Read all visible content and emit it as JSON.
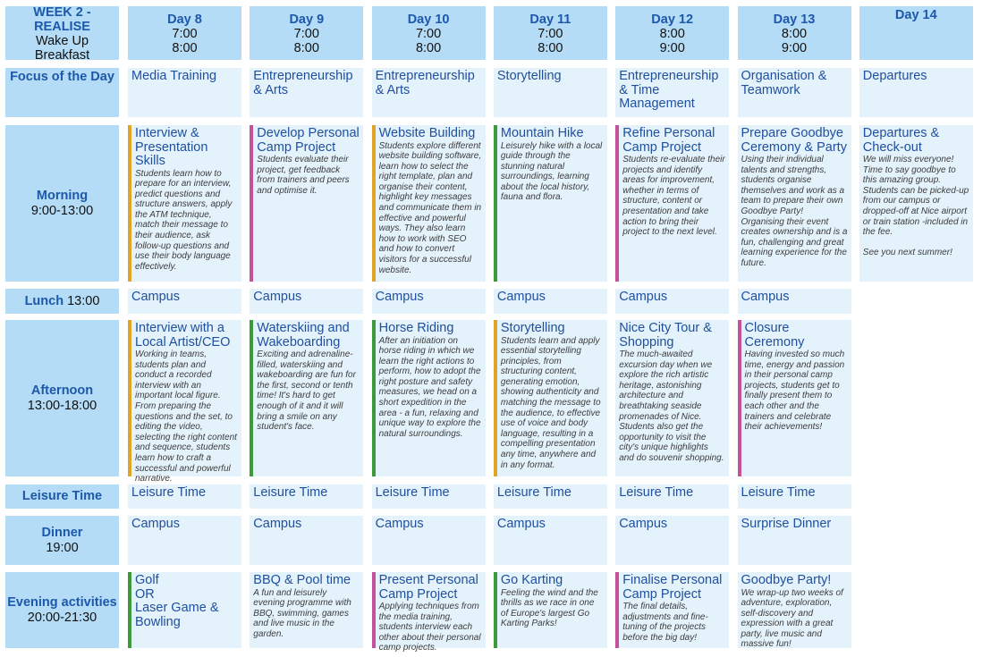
{
  "header": {
    "label": [
      "WEEK 2 - REALISE",
      "Wake Up",
      "Breakfast"
    ],
    "days": [
      {
        "day": "Day 8",
        "times": [
          "7:00",
          "8:00"
        ]
      },
      {
        "day": "Day 9",
        "times": [
          "7:00",
          "8:00"
        ]
      },
      {
        "day": "Day 10",
        "times": [
          "7:00",
          "8:00"
        ]
      },
      {
        "day": "Day 11",
        "times": [
          "7:00",
          "8:00"
        ]
      },
      {
        "day": "Day 12",
        "times": [
          "8:00",
          "9:00"
        ]
      },
      {
        "day": "Day 13",
        "times": [
          "8:00",
          "9:00"
        ]
      },
      {
        "day": "Day 14",
        "times": []
      }
    ]
  },
  "rows": [
    {
      "label": [
        "Focus of the Day"
      ],
      "cells": [
        {
          "title": "Media Training"
        },
        {
          "title": "Entrepreneurship & Arts"
        },
        {
          "title": "Entrepreneurship & Arts"
        },
        {
          "title": "Storytelling"
        },
        {
          "title": "Entrepreneurship & Time Management"
        },
        {
          "title": "Organisation & Teamwork"
        },
        {
          "title": "Departures"
        }
      ]
    },
    {
      "label": [
        "Morning",
        "9:00-13:00"
      ],
      "cells": [
        {
          "title": "Interview & Presentation Skills",
          "text": "Students learn how to prepare for an interview, predict questions and structure answers, apply the ATM technique, match their message to their audience, ask follow-up questions and use their body language effectively.",
          "bar": "#e0a526"
        },
        {
          "title": "Develop Personal Camp Project",
          "text": "Students evaluate their project, get feedback from trainers and peers and optimise it.",
          "bar": "#c4529b"
        },
        {
          "title": "Website Building",
          "text": "Students explore different website building software, learn how to select the right template, plan and organise their content, highlight key messages and communicate them in effective and powerful ways. They also learn how to work with SEO and how to convert visitors for a successful website.",
          "bar": "#e0a526"
        },
        {
          "title": "Mountain Hike",
          "text": "Leisurely hike with a local guide through the stunning natural surroundings, learning about the local history, fauna and flora.",
          "bar": "#3d9a3a"
        },
        {
          "title": "Refine Personal Camp Project",
          "text": "Students re-evaluate their projects and identify areas for improvement, whether in terms of structure, content or presentation and take action to bring their project to the next level.",
          "bar": "#c4529b"
        },
        {
          "title": "Prepare Goodbye Ceremony & Party",
          "text": "Using their individual talents and strengths, students organise themselves and work as a team to prepare their own Goodbye Party! Organising their event creates ownership and is a fun, challenging and great learning experience for the future."
        },
        {
          "title": "Departures & Check-out",
          "text": "We will miss everyone! Time to say goodbye to this amazing group. Students can be picked-up from our campus or dropped-off at Nice airport or train station -included in the fee.",
          "closing": "See you next summer!"
        }
      ]
    },
    {
      "label": [
        "Lunch",
        "13:00"
      ],
      "cells": [
        {
          "title": "Campus"
        },
        {
          "title": "Campus"
        },
        {
          "title": "Campus"
        },
        {
          "title": "Campus"
        },
        {
          "title": "Campus"
        },
        {
          "title": "Campus"
        },
        null
      ]
    },
    {
      "label": [
        "Afternoon",
        "13:00-18:00"
      ],
      "cells": [
        {
          "title": "Interview with a Local Artist/CEO",
          "text": "Working in teams, students plan and conduct a recorded interview with an important local figure. From preparing the questions and the set, to editing the video, selecting the right content and sequence, students learn how to craft a successful and powerful narrative.",
          "bar": "#e0a526"
        },
        {
          "title": "Waterskiing and Wakeboarding",
          "text": "Exciting and adrenaline-filled, waterskiing and wakeboarding are fun for the first, second or tenth time! It's hard to get enough of it and it will bring a smile on any student's face.",
          "bar": "#3d9a3a"
        },
        {
          "title": "Horse Riding",
          "text": "After an initiation on horse riding in which we learn the right actions to perform, how to adopt the right posture and safety measures, we head on a short expedition in the area - a fun, relaxing and unique way to explore the natural surroundings.",
          "bar": "#3d9a3a"
        },
        {
          "title": "Storytelling",
          "text": "Students learn and apply essential storytelling principles, from structuring content, generating emotion, showing authenticity and matching the message to the audience, to effective use of voice and body language, resulting in a compelling presentation any time, anywhere and in any format.",
          "bar": "#e0a526"
        },
        {
          "title": "Nice City Tour & Shopping",
          "text": "The much-awaited excursion day when we explore the rich artistic heritage, astonishing architecture and breathtaking seaside promenades of Nice. Students also get the opportunity to visit the city's unique highlights and do souvenir shopping."
        },
        {
          "title": "Closure Ceremony",
          "text": "Having invested so much time, energy and passion in their personal camp projects, students get to finally present them to each other and the trainers and celebrate their achievements!",
          "bar": "#c4529b"
        },
        null
      ]
    },
    {
      "label": [
        "Leisure Time"
      ],
      "cells": [
        {
          "title": "Leisure Time"
        },
        {
          "title": "Leisure Time"
        },
        {
          "title": "Leisure Time"
        },
        {
          "title": "Leisure Time"
        },
        {
          "title": "Leisure Time"
        },
        {
          "title": "Leisure Time"
        },
        null
      ]
    },
    {
      "label": [
        "Dinner",
        "19:00"
      ],
      "cells": [
        {
          "title": "Campus"
        },
        {
          "title": "Campus"
        },
        {
          "title": "Campus"
        },
        {
          "title": "Campus"
        },
        {
          "title": "Campus"
        },
        {
          "title": "Surprise Dinner"
        },
        null
      ]
    },
    {
      "label": [
        "Evening activities",
        "20:00-21:30"
      ],
      "cells": [
        {
          "title": "Golf\nOR\nLaser Game &\nBowling",
          "bar": "#3d9a3a"
        },
        {
          "title": "BBQ & Pool time",
          "text": "A fun and leisurely evening programme with BBQ, swimming, games and live music in the garden."
        },
        {
          "title": "Present Personal Camp Project",
          "text": "Applying techniques from the media training, students interview each other about their personal camp projects.",
          "bar": "#c4529b"
        },
        {
          "title": "Go Karting",
          "text": "Feeling the wind and the thrills as we race in one of Europe's largest Go Karting Parks!",
          "bar": "#3d9a3a"
        },
        {
          "title": "Finalise Personal Camp Project",
          "text": "The final details, adjustments and fine-tuning of the projects before the big day!",
          "bar": "#c4529b"
        },
        {
          "title": "Goodbye Party!",
          "text": "We wrap-up two weeks of adventure, exploration, self-discovery and expression with a great party, live music and massive fun!"
        },
        null
      ]
    }
  ]
}
